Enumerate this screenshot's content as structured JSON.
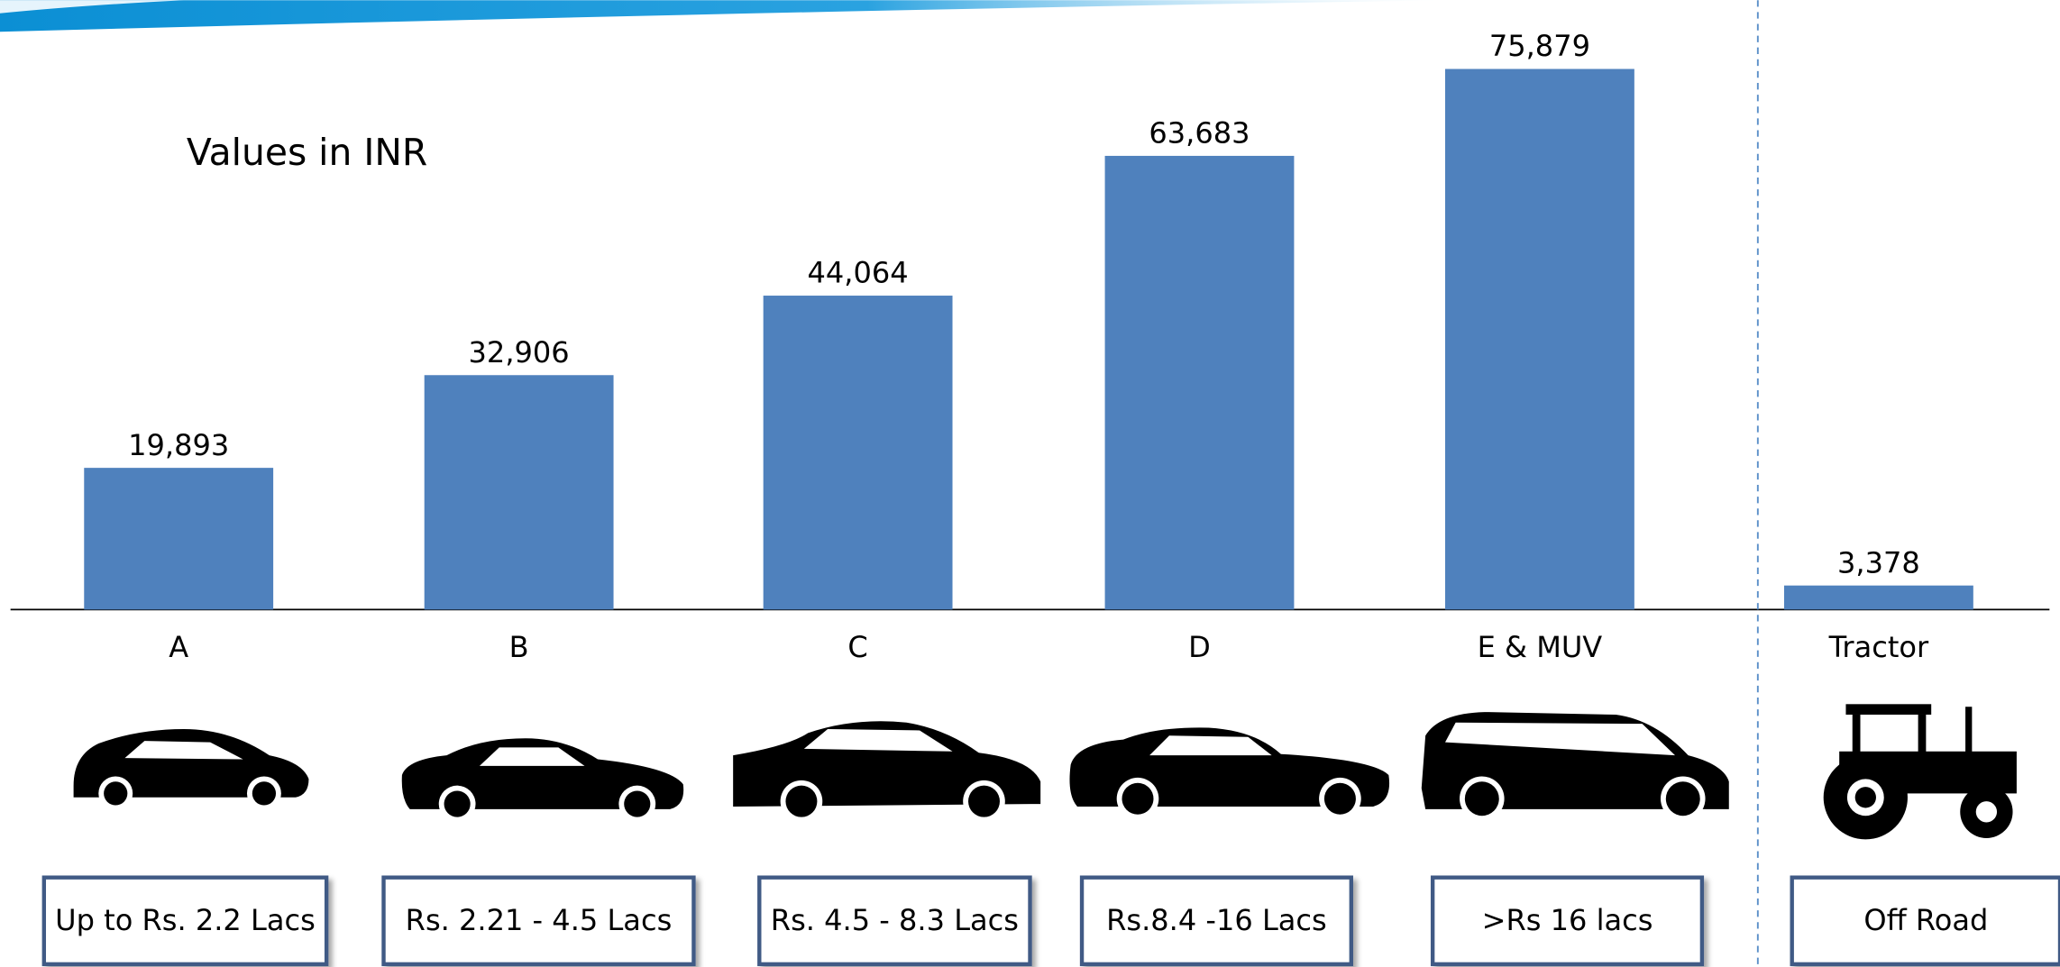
{
  "chart_data": {
    "type": "bar",
    "subtitle": "Values in INR",
    "categories": [
      "A",
      "B",
      "C",
      "D",
      "E & MUV",
      "Tractor"
    ],
    "values": [
      19893,
      32906,
      44064,
      63683,
      75879,
      3378
    ],
    "value_labels": [
      "19,893",
      "32,906",
      "44,064",
      "63,683",
      "75,879",
      "3,378"
    ],
    "price_ranges": [
      "Up to Rs. 2.2 Lacs",
      "Rs. 2.21 - 4.5 Lacs",
      "Rs. 4.5 - 8.3 Lacs",
      "Rs.8.4 -16 Lacs",
      ">Rs 16 lacs",
      "Off Road"
    ],
    "color": "#4f81bd",
    "ylim": [
      0,
      80000
    ],
    "grid": false
  }
}
